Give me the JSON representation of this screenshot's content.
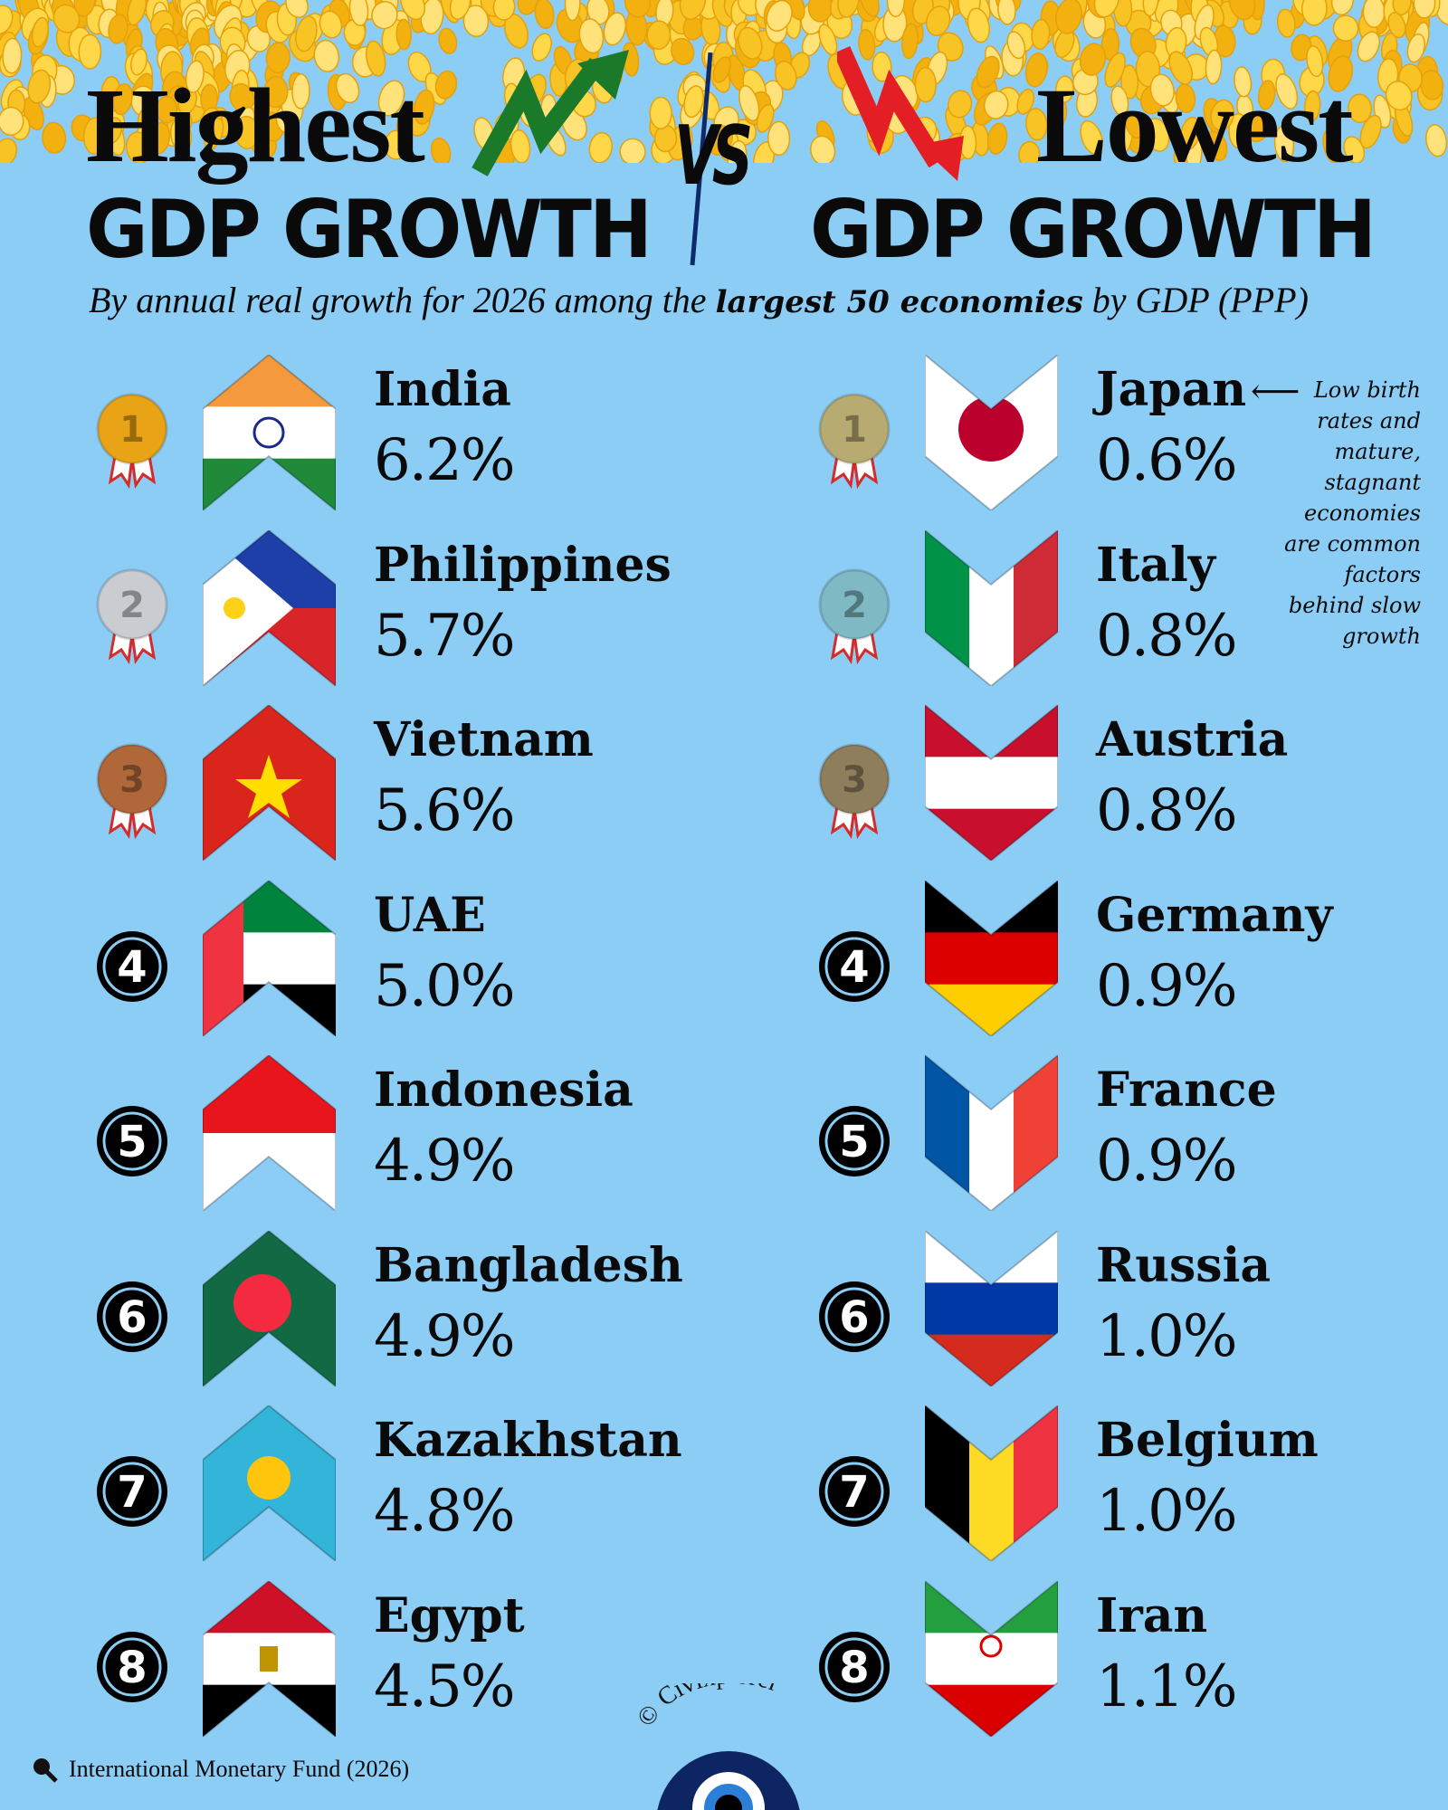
{
  "header": {
    "left_line1": "Highest",
    "left_line2": "GDP GROWTH",
    "vs": "VS",
    "right_line1": "Lowest",
    "right_line2": "GDP GROWTH",
    "subtitle_pre": "By annual real growth for 2026 among the ",
    "subtitle_bold": "largest 50 economies",
    "subtitle_post": " by GDP (PPP)"
  },
  "colors": {
    "background": "#8ccdf6",
    "up_arrow": "#1a7a2a",
    "down_arrow": "#e31e24",
    "gold": "#e8a416",
    "silver": "#c9ccd0",
    "bronze": "#b0673a"
  },
  "highest": [
    {
      "rank": "1",
      "country": "India",
      "growth": "6.2%",
      "flag": {
        "dir": "h",
        "colors": [
          "#f59a3c",
          "#ffffff",
          "#1e8a3a"
        ],
        "emblem": "chakra"
      }
    },
    {
      "rank": "2",
      "country": "Philippines",
      "growth": "5.7%",
      "flag": {
        "dir": "h",
        "colors": [
          "#1f3fa8",
          "#d9252a"
        ],
        "emblem": "sun-triangle"
      }
    },
    {
      "rank": "3",
      "country": "Vietnam",
      "growth": "5.6%",
      "flag": {
        "dir": "h",
        "colors": [
          "#da251d"
        ],
        "emblem": "star"
      }
    },
    {
      "rank": "4",
      "country": "UAE",
      "growth": "5.0%",
      "flag": {
        "dir": "h",
        "colors": [
          "#00843d",
          "#ffffff",
          "#000000"
        ],
        "emblem": "hoist-red"
      }
    },
    {
      "rank": "5",
      "country": "Indonesia",
      "growth": "4.9%",
      "flag": {
        "dir": "h",
        "colors": [
          "#e8161c",
          "#ffffff"
        ]
      }
    },
    {
      "rank": "6",
      "country": "Bangladesh",
      "growth": "4.9%",
      "flag": {
        "dir": "h",
        "colors": [
          "#116a43"
        ],
        "emblem": "red-disc"
      }
    },
    {
      "rank": "7",
      "country": "Kazakhstan",
      "growth": "4.8%",
      "flag": {
        "dir": "h",
        "colors": [
          "#32b5d8"
        ],
        "emblem": "sun"
      }
    },
    {
      "rank": "8",
      "country": "Egypt",
      "growth": "4.5%",
      "flag": {
        "dir": "h",
        "colors": [
          "#ce1126",
          "#ffffff",
          "#000000"
        ],
        "emblem": "eagle"
      }
    }
  ],
  "lowest": [
    {
      "rank": "1",
      "country": "Japan",
      "growth": "0.6%",
      "flag": {
        "dir": "h",
        "colors": [
          "#ffffff"
        ],
        "emblem": "red-disc"
      }
    },
    {
      "rank": "2",
      "country": "Italy",
      "growth": "0.8%",
      "flag": {
        "dir": "v",
        "colors": [
          "#009246",
          "#ffffff",
          "#ce2b37"
        ]
      }
    },
    {
      "rank": "3",
      "country": "Austria",
      "growth": "0.8%",
      "flag": {
        "dir": "h",
        "colors": [
          "#c8102e",
          "#ffffff",
          "#c8102e"
        ]
      }
    },
    {
      "rank": "4",
      "country": "Germany",
      "growth": "0.9%",
      "flag": {
        "dir": "h",
        "colors": [
          "#000000",
          "#dd0000",
          "#ffce00"
        ]
      }
    },
    {
      "rank": "5",
      "country": "France",
      "growth": "0.9%",
      "flag": {
        "dir": "v",
        "colors": [
          "#0055a4",
          "#ffffff",
          "#ef4135"
        ]
      }
    },
    {
      "rank": "6",
      "country": "Russia",
      "growth": "1.0%",
      "flag": {
        "dir": "h",
        "colors": [
          "#ffffff",
          "#0039a6",
          "#d52b1e"
        ]
      }
    },
    {
      "rank": "7",
      "country": "Belgium",
      "growth": "1.0%",
      "flag": {
        "dir": "v",
        "colors": [
          "#000000",
          "#fdda24",
          "#ef3340"
        ]
      }
    },
    {
      "rank": "8",
      "country": "Iran",
      "growth": "1.1%",
      "flag": {
        "dir": "h",
        "colors": [
          "#239f40",
          "#ffffff",
          "#da0000"
        ],
        "emblem": "emblem"
      }
    }
  ],
  "note": "Low birth rates and mature, stagnant economies are common factors behind slow growth",
  "note_lines": [
    "Low birth",
    "rates and",
    "mature,",
    "stagnant",
    "economies",
    "are common",
    "factors",
    "behind slow",
    "growth"
  ],
  "source": "International Monetary Fund (2026)",
  "brand": "© Civixplorer"
}
